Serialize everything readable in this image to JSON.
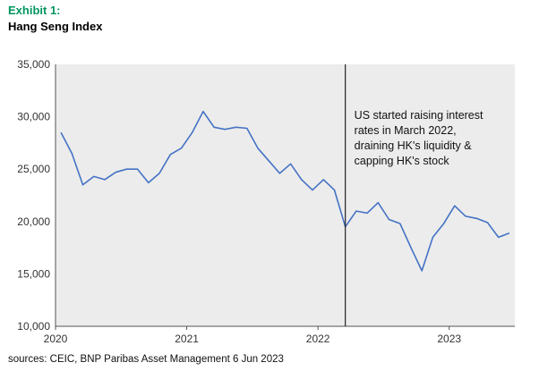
{
  "exhibit_label": "Exhibit 1:",
  "title": "Hang Seng Index",
  "source": "sources: CEIC, BNP Paribas Asset Management 6 Jun 2023",
  "colors": {
    "exhibit": "#00965e",
    "line": "#4472c4",
    "plot_bg": "#ececec",
    "marker_line": "#222222"
  },
  "chart_data": {
    "type": "line",
    "title": "Hang Seng Index",
    "xlabel": "",
    "ylabel": "",
    "x_ticks": [
      "2020",
      "2021",
      "2022",
      "2023"
    ],
    "y_ticks": [
      "10,000",
      "15,000",
      "20,000",
      "25,000",
      "30,000",
      "35,000"
    ],
    "ylim": [
      10000,
      35000
    ],
    "xlim": [
      "2020-01",
      "2023-06"
    ],
    "grid": false,
    "series": [
      {
        "x": [
          "2020-01",
          "2020-02",
          "2020-03",
          "2020-04",
          "2020-05",
          "2020-06",
          "2020-07",
          "2020-08",
          "2020-09",
          "2020-10",
          "2020-11",
          "2020-12",
          "2021-01",
          "2021-02",
          "2021-03",
          "2021-04",
          "2021-05",
          "2021-06",
          "2021-07",
          "2021-08",
          "2021-09",
          "2021-10",
          "2021-11",
          "2021-12",
          "2022-01",
          "2022-02",
          "2022-03",
          "2022-04",
          "2022-05",
          "2022-06",
          "2022-07",
          "2022-08",
          "2022-09",
          "2022-10",
          "2022-11",
          "2022-12",
          "2023-01",
          "2023-02",
          "2023-03",
          "2023-04",
          "2023-05",
          "2023-06"
        ],
        "values": [
          28500,
          26500,
          23500,
          24300,
          24000,
          24700,
          25000,
          25000,
          23700,
          24600,
          26400,
          27000,
          28500,
          30500,
          29000,
          28800,
          29000,
          28900,
          27000,
          25800,
          24600,
          25500,
          24000,
          23000,
          24000,
          23000,
          19500,
          21000,
          20800,
          21800,
          20200,
          19800,
          17500,
          15300,
          18500,
          19800,
          21500,
          20500,
          20300,
          19900,
          18500,
          18900
        ]
      }
    ],
    "annotations": [
      {
        "x": "2022-03",
        "lines": [
          "US started raising interest",
          "rates in March 2022,",
          "draining HK's liquidity &",
          "capping HK's stock"
        ]
      }
    ]
  }
}
